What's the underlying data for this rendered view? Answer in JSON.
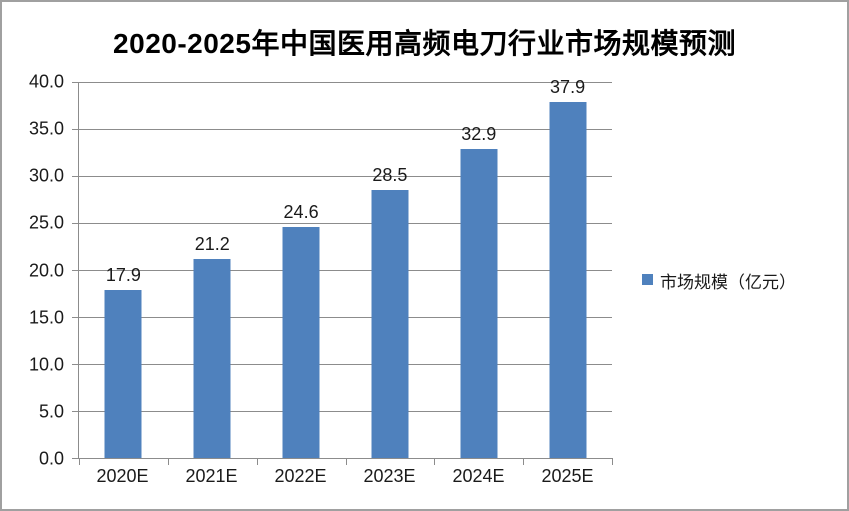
{
  "chart_data": {
    "type": "bar",
    "title": "2020-2025年中国医用高频电刀行业市场规模预测",
    "categories": [
      "2020E",
      "2021E",
      "2022E",
      "2023E",
      "2024E",
      "2025E"
    ],
    "values": [
      17.9,
      21.2,
      24.6,
      28.5,
      32.9,
      37.9
    ],
    "series": [
      {
        "name": "市场规模（亿元）",
        "values": [
          17.9,
          21.2,
          24.6,
          28.5,
          32.9,
          37.9
        ]
      }
    ],
    "xlabel": "",
    "ylabel": "",
    "ylim": [
      0,
      40
    ],
    "ytick_step": 5,
    "ytick_labels": [
      "0.0",
      "5.0",
      "10.0",
      "15.0",
      "20.0",
      "25.0",
      "30.0",
      "35.0",
      "40.0"
    ],
    "grid": true,
    "data_labels_shown": true,
    "legend": {
      "label": "市场规模（亿元）",
      "position": "right"
    },
    "colors": {
      "bar": "#4F81BD",
      "gridline": "#8C8C8C",
      "axis": "#8C8C8C",
      "frame_border": "#A0A0A0",
      "text": "#1A1A1A",
      "title_text": "#000000"
    }
  }
}
